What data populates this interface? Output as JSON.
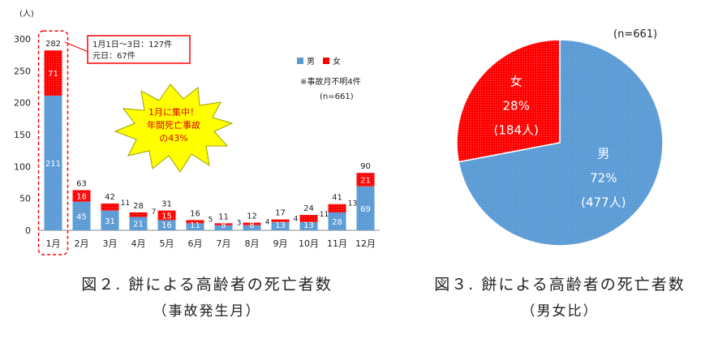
{
  "chart_data": [
    {
      "type": "bar",
      "stacked": true,
      "yunit": "(人)",
      "ylim": [
        0,
        300
      ],
      "yticks": [
        "0",
        "50",
        "100",
        "150",
        "200",
        "250",
        "300"
      ],
      "categories": [
        "1月",
        "2月",
        "3月",
        "4月",
        "5月",
        "6月",
        "7月",
        "8月",
        "9月",
        "10月",
        "11月",
        "12月"
      ],
      "series": [
        {
          "name": "男",
          "color": "#5b9bd5",
          "values": [
            211,
            45,
            31,
            21,
            16,
            11,
            8,
            8,
            13,
            13,
            28,
            69
          ]
        },
        {
          "name": "女",
          "color": "#ff0000",
          "values": [
            71,
            18,
            11,
            7,
            15,
            5,
            3,
            4,
            4,
            11,
            13,
            21
          ]
        }
      ],
      "totals": [
        282,
        63,
        42,
        28,
        31,
        16,
        11,
        12,
        17,
        24,
        41,
        90
      ],
      "legend_position": "top-right",
      "legend_note": "※事故月不明4件",
      "legend_n": "(n=661)",
      "callout_lines": [
        "1月1日～3日：127件",
        "元日：67件"
      ],
      "burst_lines": [
        "1月に集中！",
        "年間死亡事故",
        "の43%"
      ]
    },
    {
      "type": "pie",
      "n_label": "(n=661)",
      "slices": [
        {
          "label": "男",
          "value": 72,
          "pct": "72%",
          "count": "(477人)",
          "color": "#5b9bd5"
        },
        {
          "label": "女",
          "value": 28,
          "pct": "28%",
          "count": "(184人)",
          "color": "#ff0000"
        }
      ]
    }
  ],
  "captions": {
    "fig2_title": "図２. 餅による高齢者の死亡者数",
    "fig2_sub": "（事故発生月）",
    "fig3_title": "図３. 餅による高齢者の死亡者数",
    "fig3_sub": "（男女比）"
  }
}
